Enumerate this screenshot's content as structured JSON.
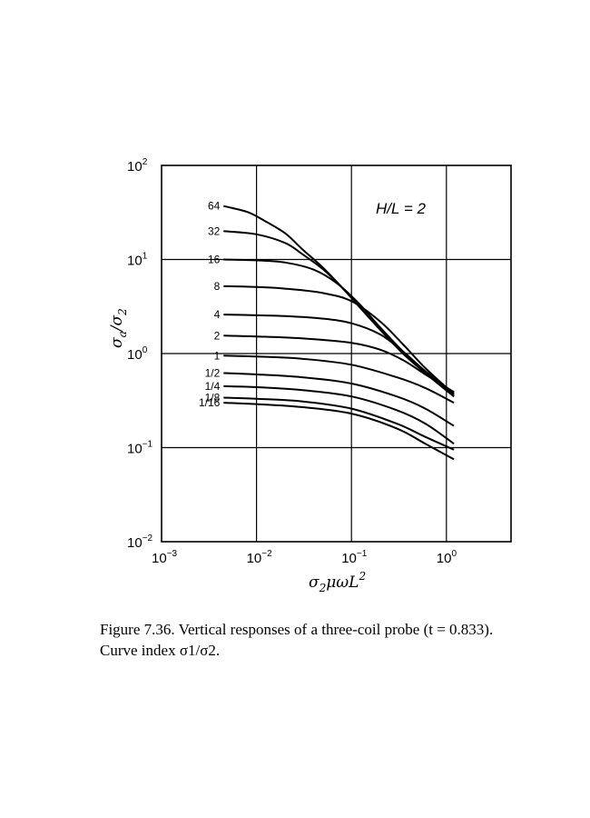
{
  "chart_data": {
    "type": "line",
    "xscale": "log",
    "yscale": "log",
    "xlim": [
      0.001,
      5
    ],
    "ylim": [
      0.01,
      100
    ],
    "grid": true,
    "xlabel": "σ2μωL2",
    "ylabel": "σa/σ2",
    "annotation": "H/L = 2",
    "x_ticks": [
      {
        "base": "10",
        "exp": "−3",
        "value": 0.001
      },
      {
        "base": "10",
        "exp": "−2",
        "value": 0.01
      },
      {
        "base": "10",
        "exp": "−1",
        "value": 0.1
      },
      {
        "base": "10",
        "exp": "0",
        "value": 1
      }
    ],
    "y_ticks": [
      {
        "base": "10",
        "exp": "−2",
        "value": 0.01
      },
      {
        "base": "10",
        "exp": "−1",
        "value": 0.1
      },
      {
        "base": "10",
        "exp": "0",
        "value": 1
      },
      {
        "base": "10",
        "exp": "1",
        "value": 10
      },
      {
        "base": "10",
        "exp": "2",
        "value": 100
      }
    ],
    "series": [
      {
        "name": "64",
        "x": [
          0.0045,
          0.008,
          0.012,
          0.02,
          0.03,
          0.05,
          0.08,
          0.13,
          0.2,
          0.35,
          0.6,
          1.2
        ],
        "y": [
          37,
          32,
          26,
          19,
          13,
          8.2,
          5.0,
          2.9,
          1.8,
          1.0,
          0.62,
          0.35
        ]
      },
      {
        "name": "32",
        "x": [
          0.0045,
          0.01,
          0.02,
          0.03,
          0.05,
          0.08,
          0.13,
          0.2,
          0.35,
          0.6,
          1.2
        ],
        "y": [
          20,
          18.5,
          15,
          11.5,
          7.9,
          5.0,
          2.9,
          1.8,
          1.0,
          0.62,
          0.35
        ]
      },
      {
        "name": "16",
        "x": [
          0.0045,
          0.01,
          0.02,
          0.04,
          0.07,
          0.12,
          0.2,
          0.35,
          0.6,
          1.2
        ],
        "y": [
          10,
          9.8,
          9.3,
          7.8,
          5.6,
          3.4,
          1.9,
          1.05,
          0.64,
          0.36
        ]
      },
      {
        "name": "8",
        "x": [
          0.0045,
          0.01,
          0.02,
          0.05,
          0.1,
          0.2,
          0.35,
          0.6,
          1.2
        ],
        "y": [
          5.2,
          5.1,
          4.9,
          4.4,
          3.6,
          2.2,
          1.25,
          0.7,
          0.37
        ]
      },
      {
        "name": "4",
        "x": [
          0.0045,
          0.01,
          0.02,
          0.05,
          0.1,
          0.2,
          0.35,
          0.6,
          1.2
        ],
        "y": [
          2.6,
          2.55,
          2.5,
          2.35,
          2.1,
          1.6,
          1.05,
          0.65,
          0.38
        ]
      },
      {
        "name": "2",
        "x": [
          0.0045,
          0.01,
          0.03,
          0.1,
          0.2,
          0.35,
          0.6,
          1.2
        ],
        "y": [
          1.55,
          1.52,
          1.45,
          1.3,
          1.1,
          0.85,
          0.6,
          0.39
        ]
      },
      {
        "name": "1",
        "x": [
          0.0045,
          0.01,
          0.03,
          0.1,
          0.3,
          0.6,
          1.2
        ],
        "y": [
          0.95,
          0.93,
          0.88,
          0.76,
          0.56,
          0.43,
          0.3
        ]
      },
      {
        "name": "1/2",
        "x": [
          0.0045,
          0.01,
          0.03,
          0.1,
          0.3,
          0.6,
          1.2
        ],
        "y": [
          0.62,
          0.6,
          0.56,
          0.48,
          0.35,
          0.26,
          0.17
        ]
      },
      {
        "name": "1/4",
        "x": [
          0.0045,
          0.01,
          0.03,
          0.1,
          0.3,
          0.6,
          1.2
        ],
        "y": [
          0.45,
          0.44,
          0.41,
          0.35,
          0.25,
          0.18,
          0.11
        ]
      },
      {
        "name": "1/8",
        "x": [
          0.0045,
          0.01,
          0.03,
          0.1,
          0.3,
          0.6,
          1.2
        ],
        "y": [
          0.34,
          0.33,
          0.31,
          0.26,
          0.18,
          0.13,
          0.095
        ]
      },
      {
        "name": "1/16",
        "x": [
          0.0045,
          0.01,
          0.03,
          0.1,
          0.3,
          0.6,
          1.2
        ],
        "y": [
          0.3,
          0.29,
          0.27,
          0.23,
          0.16,
          0.11,
          0.075
        ]
      }
    ]
  },
  "caption": "Figure 7.36. Vertical responses of a three-coil probe (t = 0.833). Curve index σ1/σ2."
}
